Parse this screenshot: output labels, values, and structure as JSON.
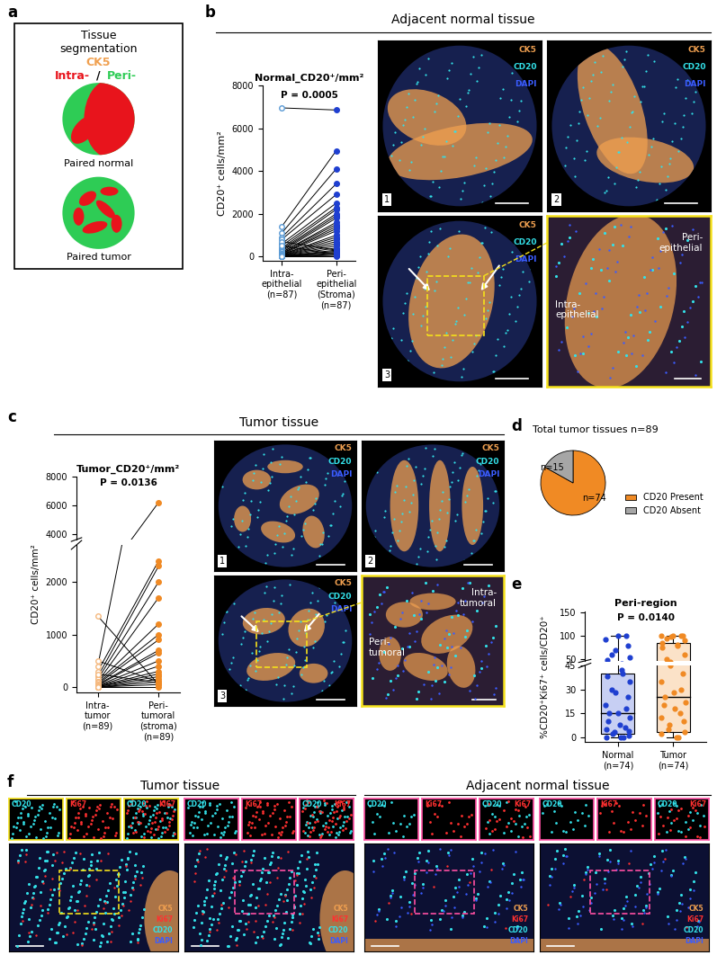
{
  "panel_labels": [
    "a",
    "b",
    "c",
    "d",
    "e",
    "f"
  ],
  "stain_colors": {
    "CK5": "#f0a050",
    "CD20": "#33e0e8",
    "DAPI": "#3a5cff",
    "Ki67": "#ff3030"
  },
  "panel_a": {
    "title": "Tissue\nsegmentation",
    "stain": "CK5",
    "intra": "Intra-",
    "separator": "/",
    "peri": "Peri-",
    "captions": [
      "Paired normal",
      "Paired tumor"
    ],
    "intra_color": "#e8141c",
    "peri_color": "#2ecc55"
  },
  "panel_b": {
    "header": "Adjacent normal tissue",
    "image_stains": [
      "CK5",
      "CD20",
      "DAPI"
    ],
    "image_numbers": [
      "1",
      "2",
      "3"
    ],
    "zoom_labels": [
      "Peri-\nepithelial",
      "Intra-\nepithelial"
    ]
  },
  "panel_c": {
    "header": "Tumor tissue",
    "image_stains": [
      "CK5",
      "CD20",
      "DAPI"
    ],
    "image_numbers": [
      "1",
      "2",
      "3"
    ],
    "zoom_labels": [
      "Intra-\ntumoral",
      "Peri-\ntumoral"
    ]
  },
  "panel_f": {
    "headers": [
      "Tumor tissue",
      "Adjacent normal tissue"
    ],
    "inset_labels": [
      [
        "CD20"
      ],
      [
        "Ki67"
      ],
      [
        "CD20",
        "Ki67"
      ]
    ],
    "image_stains": [
      "CK5",
      "Ki67",
      "CD20",
      "DAPI"
    ]
  },
  "chart_data": [
    {
      "type": "paired",
      "title": "Normal_CD20⁺/mm²",
      "annotation": "P = 0.0005",
      "y_label": "CD20⁺ cells/mm²",
      "categories": [
        "Intra-\nepithelial\n(n=87)",
        "Peri-\nepithelial\n(Stroma)\n(n=87)"
      ],
      "colors": [
        "#5b9bd5",
        "#1f3fd0"
      ],
      "values": [
        [
          6950,
          6850
        ],
        [
          1400,
          4950
        ],
        [
          1100,
          4100
        ],
        [
          900,
          3400
        ],
        [
          800,
          2900
        ],
        [
          600,
          2500
        ],
        [
          500,
          2300
        ],
        [
          400,
          2200
        ],
        [
          350,
          2000
        ],
        [
          300,
          1900
        ],
        [
          250,
          1800
        ],
        [
          200,
          1600
        ],
        [
          200,
          1500
        ],
        [
          150,
          1400
        ],
        [
          150,
          1300
        ],
        [
          120,
          1200
        ],
        [
          100,
          1000
        ],
        [
          100,
          900
        ],
        [
          80,
          800
        ],
        [
          60,
          700
        ],
        [
          50,
          600
        ],
        [
          40,
          500
        ],
        [
          30,
          400
        ],
        [
          20,
          300
        ],
        [
          10,
          250
        ],
        [
          10,
          200
        ],
        [
          5,
          150
        ],
        [
          0,
          100
        ],
        [
          0,
          50
        ],
        [
          0,
          0
        ],
        [
          700,
          300
        ],
        [
          500,
          100
        ]
      ],
      "ylim": [
        -200,
        8000
      ],
      "yticks": [
        0,
        2000,
        4000,
        6000,
        8000
      ]
    },
    {
      "type": "paired",
      "title": "Tumor_CD20⁺/mm²",
      "annotation": "P = 0.0136",
      "y_label": "CD20⁺ cells/mm²",
      "categories": [
        "Intra-\ntumor\n(n=89)",
        "Peri-\ntumoral\n(stroma)\n(n=89)"
      ],
      "colors": [
        "#f5b97f",
        "#f08a24"
      ],
      "values": [
        [
          1350,
          50
        ],
        [
          400,
          6200
        ],
        [
          300,
          2400
        ],
        [
          200,
          2300
        ],
        [
          150,
          2000
        ],
        [
          100,
          1700
        ],
        [
          100,
          1200
        ],
        [
          80,
          1000
        ],
        [
          60,
          900
        ],
        [
          50,
          700
        ],
        [
          40,
          650
        ],
        [
          30,
          500
        ],
        [
          20,
          400
        ],
        [
          20,
          300
        ],
        [
          10,
          250
        ],
        [
          10,
          200
        ],
        [
          0,
          150
        ],
        [
          0,
          100
        ],
        [
          0,
          50
        ],
        [
          0,
          0
        ],
        [
          500,
          100
        ],
        [
          250,
          80
        ]
      ],
      "segments": [
        {
          "ylim": [
            -100,
            2700
          ],
          "yticks": [
            0,
            1000,
            2000
          ]
        },
        {
          "ylim": [
            3600,
            8000
          ],
          "yticks": [
            4000,
            6000,
            8000
          ]
        }
      ]
    },
    {
      "type": "pie",
      "title": "Total tumor tissues n=89",
      "categories": [
        "CD20 Present",
        "CD20 Absent"
      ],
      "values": [
        74,
        15
      ],
      "value_labels": [
        "n=74",
        "n=15"
      ],
      "colors": [
        "#f08a24",
        "#a6a6a6"
      ],
      "legend": "lower right",
      "data_labels": true
    },
    {
      "type": "box",
      "title": "Peri-region",
      "annotation": "P = 0.0140",
      "y_label": "%CD20⁺Ki67⁺ cells/CD20⁺",
      "categories": [
        "Normal\n(n=74)",
        "Tumor\n(n=74)"
      ],
      "colors": [
        "#1f3fd0",
        "#f08a24"
      ],
      "values": [
        [
          100,
          100,
          92,
          80,
          70,
          60,
          55,
          48,
          42,
          40,
          38,
          35,
          30,
          28,
          25,
          20,
          18,
          15,
          15,
          12,
          10,
          8,
          6,
          5,
          4,
          3,
          2,
          1,
          0,
          0,
          0
        ],
        [
          100,
          100,
          100,
          100,
          98,
          95,
          90,
          85,
          82,
          80,
          75,
          60,
          50,
          45,
          40,
          35,
          30,
          28,
          25,
          22,
          20,
          18,
          15,
          12,
          10,
          8,
          5,
          3,
          2,
          0,
          0
        ]
      ],
      "stats": [
        {
          "min": 0,
          "q1": 2,
          "median": 15,
          "q3": 40,
          "max": 100
        },
        {
          "min": 0,
          "q1": 3,
          "median": 25,
          "q3": 85,
          "max": 100
        }
      ],
      "segments": [
        {
          "ylim": [
            -3,
            45
          ],
          "yticks": [
            0,
            15,
            30,
            45
          ]
        },
        {
          "ylim": [
            47,
            152
          ],
          "yticks": [
            50,
            100,
            150
          ]
        }
      ]
    }
  ]
}
